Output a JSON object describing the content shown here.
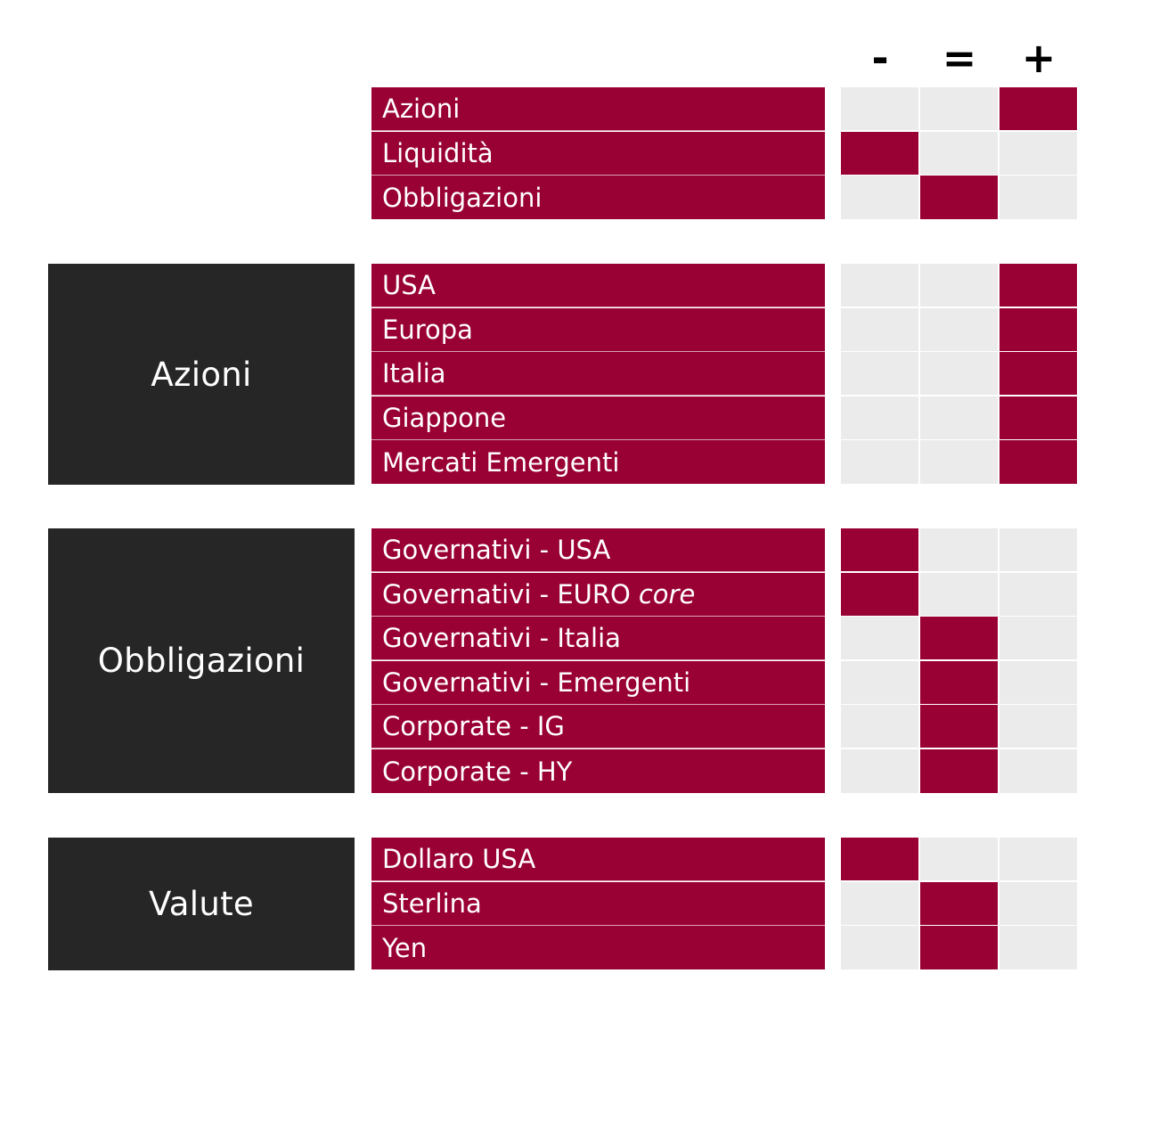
{
  "columns": [
    "-",
    "=",
    "+"
  ],
  "colors": {
    "accent": "#990033",
    "category_bg": "#262626",
    "empty_cell": "#ebebeb"
  },
  "groups": [
    {
      "category": "",
      "rows": [
        {
          "label": "Azioni",
          "rating": "+"
        },
        {
          "label": "Liquidità",
          "rating": "-"
        },
        {
          "label": "Obbligazioni",
          "rating": "="
        }
      ]
    },
    {
      "category": "Azioni",
      "rows": [
        {
          "label": "USA",
          "rating": "+"
        },
        {
          "label": "Europa",
          "rating": "+"
        },
        {
          "label": "Italia",
          "rating": "+"
        },
        {
          "label": "Giappone",
          "rating": "+"
        },
        {
          "label": "Mercati Emergenti",
          "rating": "+"
        }
      ]
    },
    {
      "category": "Obbligazioni",
      "rows": [
        {
          "label": "Governativi - USA",
          "rating": "-"
        },
        {
          "label": "Governativi - EURO",
          "label_italic": "core",
          "rating": "-"
        },
        {
          "label": "Governativi - Italia",
          "rating": "="
        },
        {
          "label": "Governativi - Emergenti",
          "rating": "="
        },
        {
          "label": "Corporate - IG",
          "rating": "="
        },
        {
          "label": "Corporate - HY",
          "rating": "="
        }
      ]
    },
    {
      "category": "Valute",
      "rows": [
        {
          "label": "Dollaro USA",
          "rating": "-"
        },
        {
          "label": "Sterlina",
          "rating": "="
        },
        {
          "label": "Yen",
          "rating": "="
        }
      ]
    }
  ]
}
